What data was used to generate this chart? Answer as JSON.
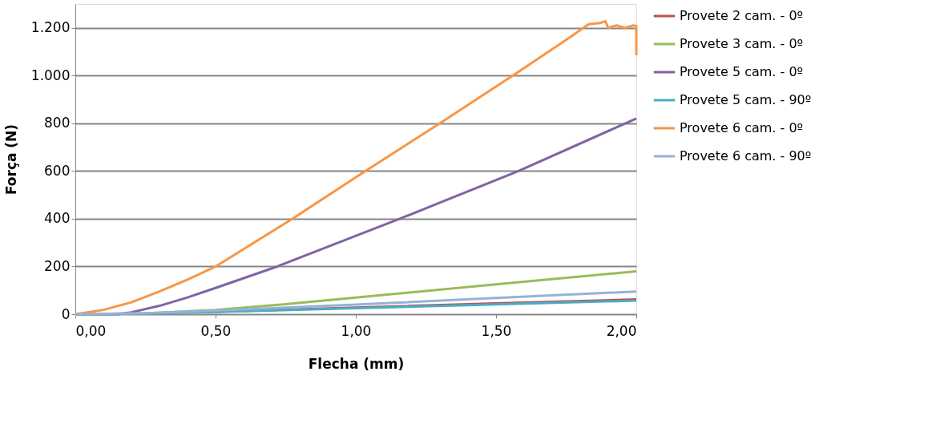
{
  "chart_data": {
    "type": "line",
    "xlabel": "Flecha (mm)",
    "ylabel": "Força (N)",
    "xlim": [
      0,
      2
    ],
    "xticks": [
      {
        "value": 0,
        "label": "0,00"
      },
      {
        "value": 0.5,
        "label": "0,50"
      },
      {
        "value": 1,
        "label": "1,00"
      },
      {
        "value": 1.5,
        "label": "1,50"
      },
      {
        "value": 2,
        "label": "2,00"
      }
    ],
    "ylim": [
      0,
      1300
    ],
    "yticks": [
      0,
      200,
      400,
      600,
      800,
      {
        "value": 1000,
        "label": "1.000"
      },
      {
        "value": 1200,
        "label": "1.200"
      }
    ],
    "grid": "y",
    "legend": "right",
    "marker": "none",
    "line_style": "solid",
    "series": [
      {
        "name": "Provete 2 cam. - 0º",
        "color": "#c0504d",
        "x": [
          0.5,
          1.0,
          1.5,
          2.0
        ],
        "values": [
          10,
          28,
          45,
          62
        ]
      },
      {
        "name": "Provete 3 cam. - 0º",
        "color": "#9bbb59",
        "x": [
          0,
          0.25,
          0.5,
          0.75,
          1.0,
          1.5,
          2.0
        ],
        "values": [
          0,
          3,
          18,
          42,
          70,
          125,
          180
        ]
      },
      {
        "name": "Provete 5 cam. - 0º",
        "color": "#8064a2",
        "x": [
          0,
          0.15,
          0.2,
          0.3,
          0.4,
          0.5,
          0.72,
          1.157,
          1.58,
          2.0
        ],
        "values": [
          0,
          0,
          8,
          35,
          70,
          110,
          200,
          400,
          600,
          820
        ]
      },
      {
        "name": "Provete 5 cam. - 90º",
        "color": "#4bacc6",
        "x": [
          0,
          0.25,
          0.5,
          1.0,
          1.5,
          2.0
        ],
        "values": [
          0,
          3,
          9,
          25,
          41,
          57
        ]
      },
      {
        "name": "Provete 6 cam. - 0º",
        "color": "#f79646",
        "x": [
          0,
          0.1,
          0.2,
          0.3,
          0.4,
          0.5,
          0.774,
          1.034,
          1.3,
          1.56,
          1.75,
          1.83,
          1.87,
          1.89,
          1.9,
          1.93,
          1.96,
          1.99,
          2.0,
          2.0
        ],
        "values": [
          0,
          18,
          50,
          95,
          145,
          200,
          400,
          600,
          800,
          1000,
          1150,
          1215,
          1220,
          1228,
          1200,
          1210,
          1200,
          1210,
          1208,
          1085
        ]
      },
      {
        "name": "Provete 6 cam. - 90º",
        "color": "#95b3d7",
        "x": [
          0,
          0.25,
          0.5,
          1.0,
          1.5,
          2.0
        ],
        "values": [
          0,
          4,
          15,
          40,
          68,
          95
        ]
      }
    ]
  }
}
